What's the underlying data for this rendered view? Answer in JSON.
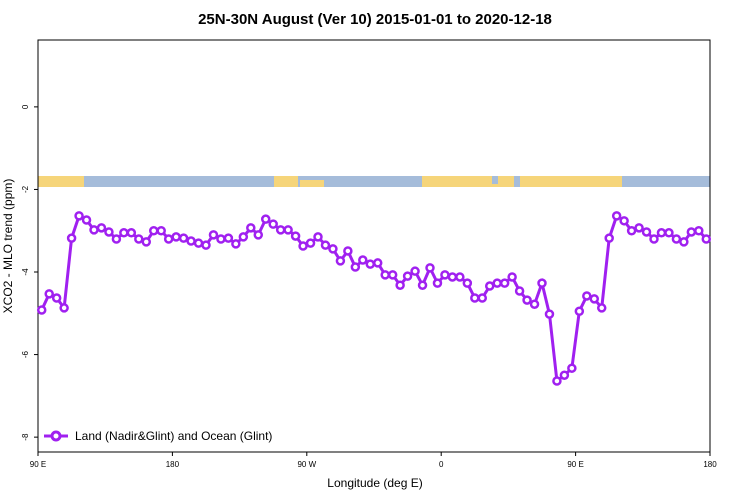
{
  "chart_data": {
    "type": "line",
    "title": "25N-30N August (Ver 10)   2015-01-01 to 2020-12-18",
    "x_label": "Longitude (deg E)",
    "y_label": "XCO2 - MLO trend (ppm)",
    "xlim": [
      90,
      540
    ],
    "ylim": [
      1.62,
      -8.36
    ],
    "xticks": [
      {
        "value": 90,
        "label": "90 E"
      },
      180,
      {
        "value": 270,
        "label": "90 W"
      },
      {
        "value": 360,
        "label": "0"
      },
      {
        "value": 450,
        "label": "90 E"
      },
      {
        "value": 540,
        "label": "180"
      }
    ],
    "yticks": [
      0,
      -2,
      -4,
      -6,
      -8
    ],
    "legend": "bottom-left",
    "x": [
      92.5,
      97.5,
      102.5,
      107.5,
      112.5,
      117.5,
      122.5,
      127.5,
      132.5,
      137.5,
      142.5,
      147.5,
      152.5,
      157.5,
      162.5,
      167.5,
      172.5,
      177.5,
      182.5,
      187.5,
      192.5,
      197.5,
      202.5,
      207.5,
      212.5,
      217.5,
      222.5,
      227.5,
      232.5,
      237.5,
      242.5,
      247.5,
      252.5,
      257.5,
      262.5,
      267.5,
      272.5,
      277.5,
      282.5,
      287.5,
      292.5,
      297.5,
      302.5,
      307.5,
      312.5,
      317.5,
      322.5,
      327.5,
      332.5,
      337.5,
      342.5,
      347.5,
      352.5,
      357.5,
      362.5,
      367.5,
      372.5,
      377.5,
      382.5,
      387.5,
      392.5,
      397.5,
      402.5,
      407.5,
      412.5,
      417.5,
      422.5,
      427.5,
      432.5,
      437.5,
      442.5,
      447.5,
      452.5,
      457.5,
      462.5,
      467.5,
      472.5,
      477.5,
      482.5,
      487.5,
      492.5,
      497.5,
      502.5,
      507.5,
      512.5,
      517.5,
      522.5,
      527.5,
      532.5,
      537.5
    ],
    "series": [
      {
        "name": "Land (Nadir&Glint) and Ocean (Glint)",
        "color": "#a020f0",
        "values": [
          -4.92,
          -4.53,
          -4.63,
          -4.87,
          -3.18,
          -2.64,
          -2.74,
          -2.98,
          -2.93,
          -3.03,
          -3.2,
          -3.05,
          -3.05,
          -3.2,
          -3.27,
          -3.0,
          -3.0,
          -3.2,
          -3.15,
          -3.18,
          -3.25,
          -3.3,
          -3.35,
          -3.1,
          -3.2,
          -3.18,
          -3.32,
          -3.15,
          -2.93,
          -3.1,
          -2.72,
          -2.84,
          -2.98,
          -2.98,
          -3.13,
          -3.37,
          -3.3,
          -3.15,
          -3.35,
          -3.44,
          -3.73,
          -3.49,
          -3.88,
          -3.71,
          -3.81,
          -3.78,
          -4.07,
          -4.07,
          -4.32,
          -4.1,
          -3.98,
          -4.32,
          -3.9,
          -4.27,
          -4.07,
          -4.12,
          -4.12,
          -4.27,
          -4.63,
          -4.63,
          -4.34,
          -4.27,
          -4.27,
          -4.12,
          -4.46,
          -4.68,
          -4.78,
          -4.27,
          -5.02,
          -6.64,
          -6.5,
          -6.33,
          -4.95,
          -4.58,
          -4.65,
          -4.87,
          -3.18,
          -2.64,
          -2.76,
          -3.0,
          -2.93,
          -3.03,
          -3.2,
          -3.05,
          -3.05,
          -3.2,
          -3.27,
          -3.03,
          -3.0,
          -3.2
        ]
      }
    ]
  }
}
